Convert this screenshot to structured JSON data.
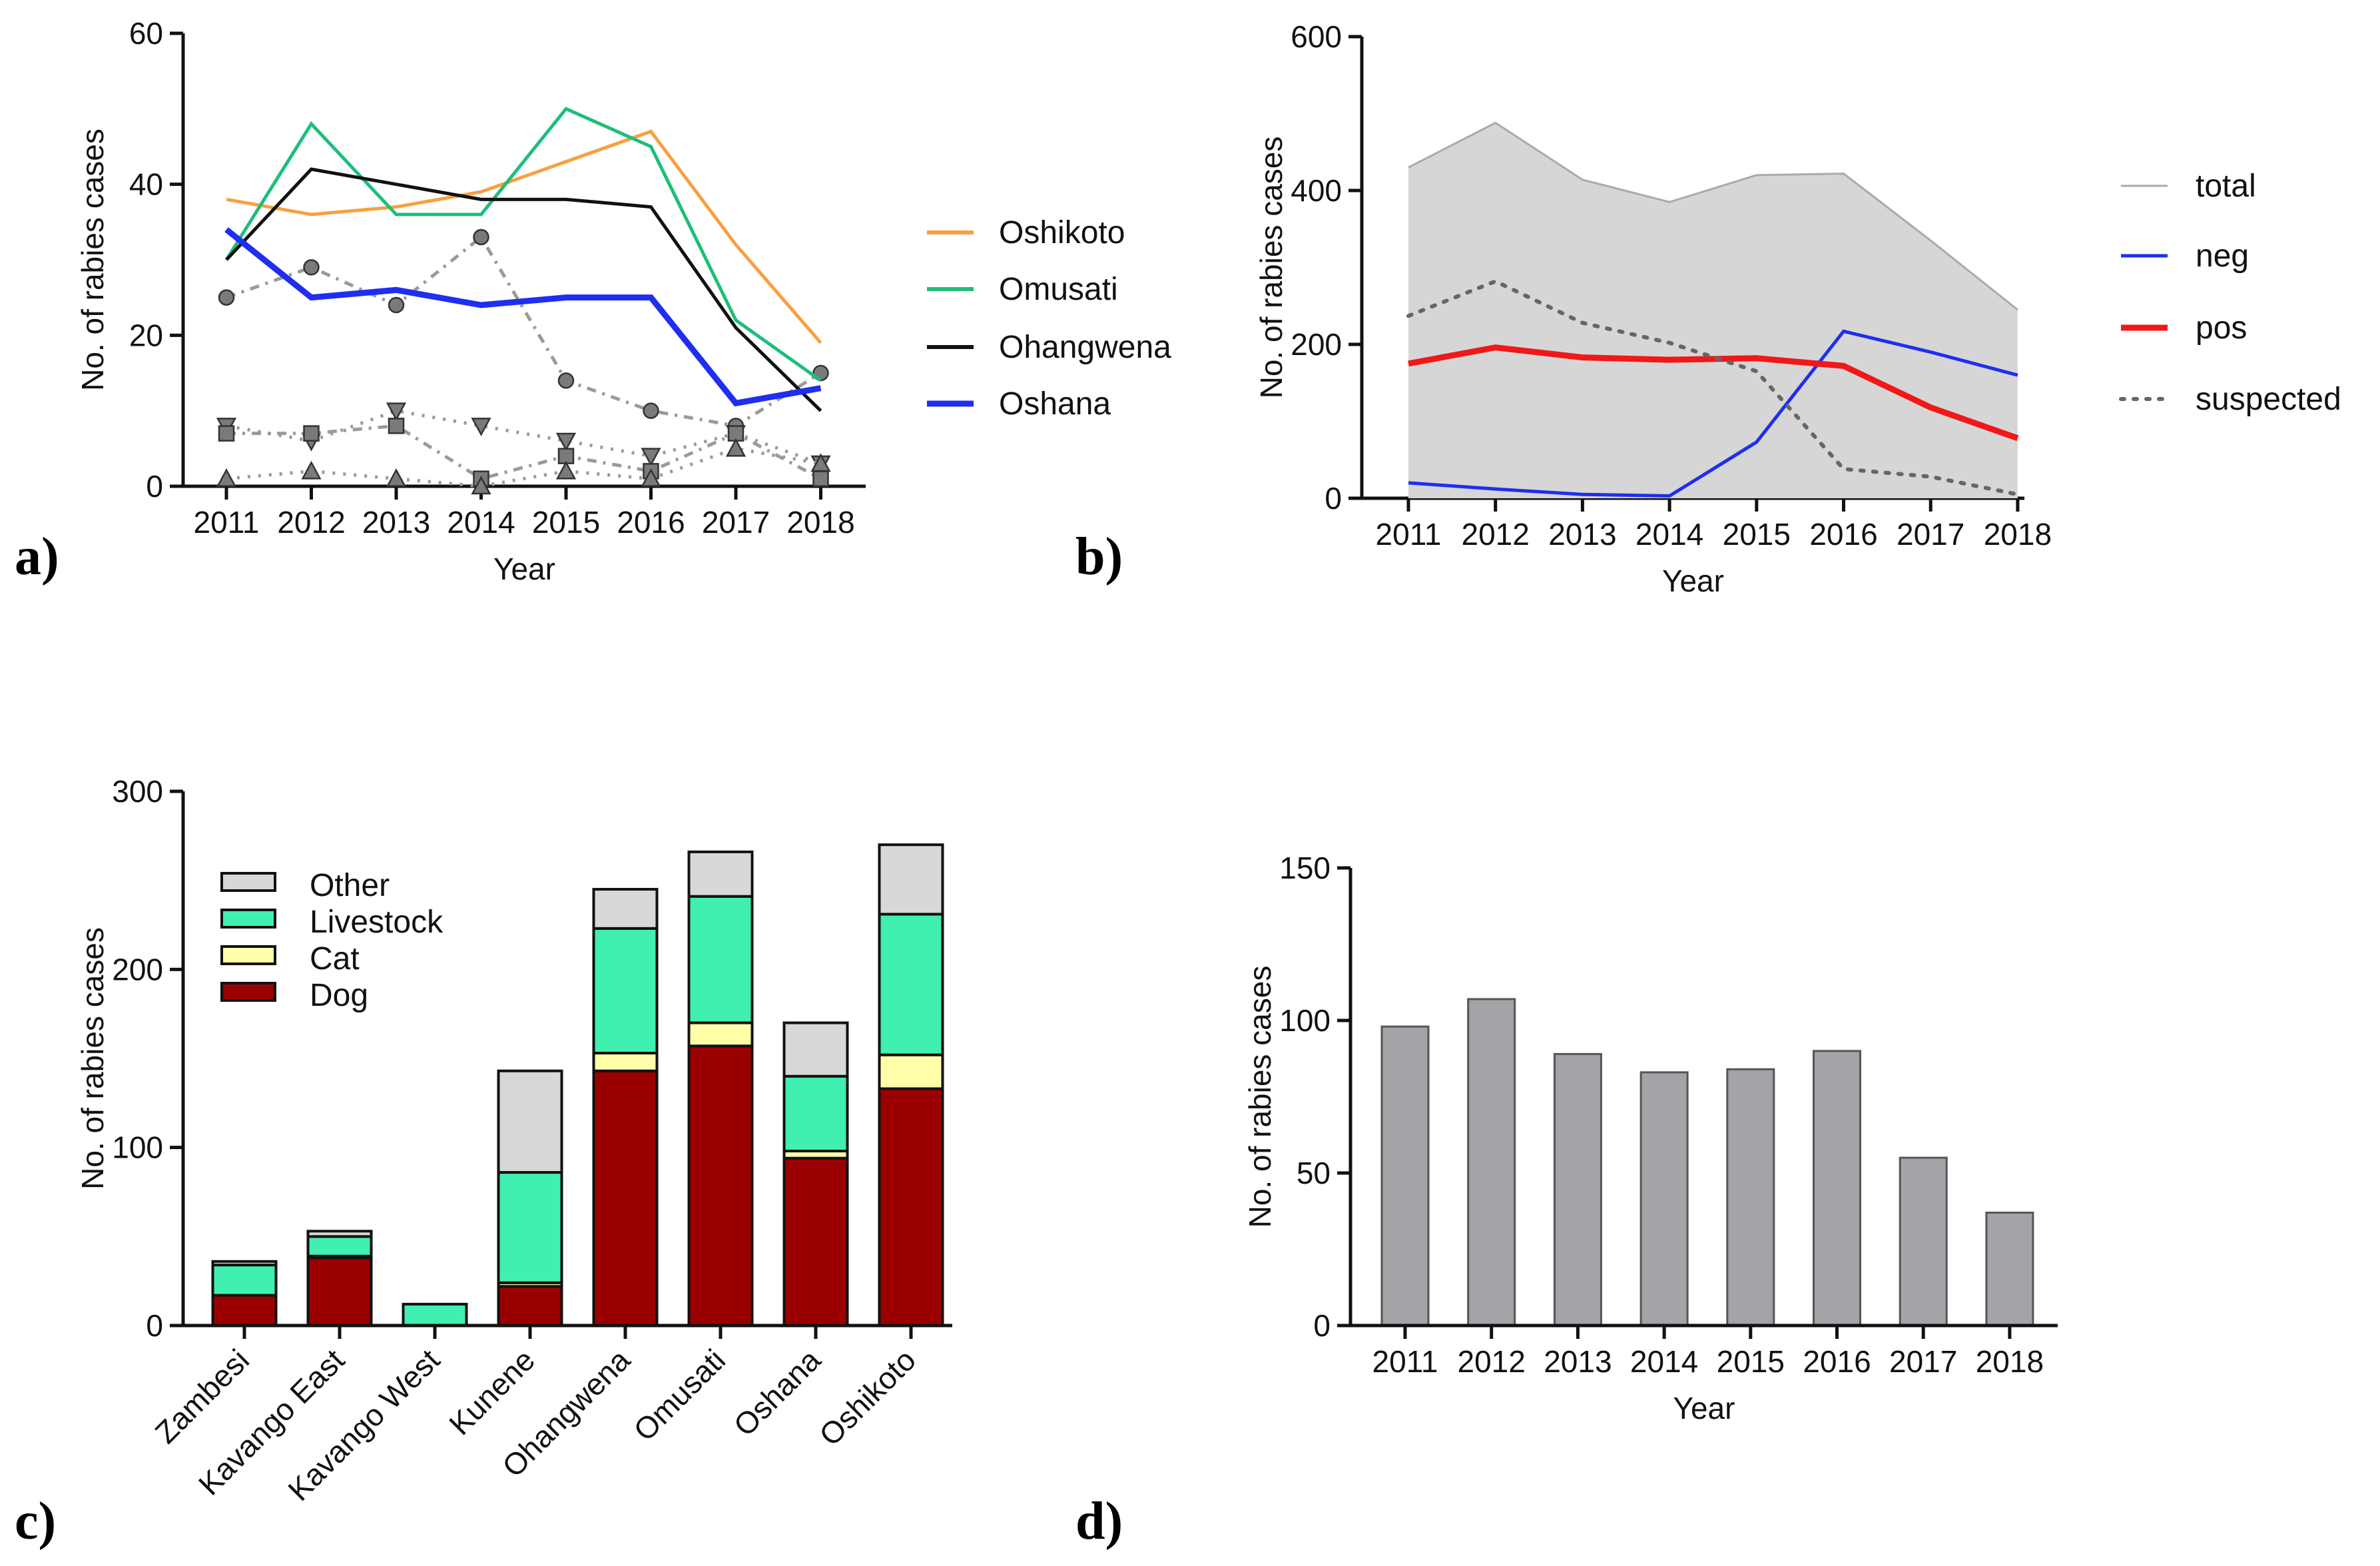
{
  "panel_labels": [
    "a)",
    "b)",
    "c)",
    "d)"
  ],
  "chart_data": [
    {
      "id": "a",
      "type": "line",
      "xlabel": "Year",
      "ylabel": "No. of rabies cases",
      "x": [
        "2011",
        "2012",
        "2013",
        "2014",
        "2015",
        "2016",
        "2017",
        "2018"
      ],
      "ylim": [
        0,
        60
      ],
      "yticks": [
        0,
        20,
        40,
        60
      ],
      "series": [
        {
          "name": "Oshikoto",
          "color": "#F7A040",
          "values": [
            38,
            36,
            37,
            39,
            43,
            47,
            32,
            19
          ]
        },
        {
          "name": "Omusati",
          "color": "#1DBE7A",
          "values": [
            30,
            48,
            36,
            36,
            50,
            45,
            22,
            14
          ]
        },
        {
          "name": "Ohangwena",
          "color": "#111111",
          "values": [
            30,
            42,
            40,
            38,
            38,
            37,
            21,
            10
          ]
        },
        {
          "name": "Oshana",
          "color": "#1F2EF0",
          "values": [
            34,
            25,
            26,
            24,
            25,
            25,
            11,
            13
          ]
        }
      ],
      "other_series": [
        {
          "marker": "circle",
          "values": [
            25,
            29,
            24,
            33,
            14,
            10,
            8,
            15
          ]
        },
        {
          "marker": "triangle-down",
          "values": [
            8,
            6,
            10,
            8,
            6,
            4,
            7,
            3
          ]
        },
        {
          "marker": "square",
          "values": [
            7,
            7,
            8,
            1,
            4,
            2,
            7,
            1
          ]
        },
        {
          "marker": "triangle-up",
          "values": [
            1,
            2,
            1,
            0,
            2,
            1,
            5,
            3
          ]
        }
      ]
    },
    {
      "id": "b",
      "type": "area",
      "xlabel": "Year",
      "ylabel": "No. of rabies cases",
      "x": [
        "2011",
        "2012",
        "2013",
        "2014",
        "2015",
        "2016",
        "2017",
        "2018"
      ],
      "ylim": [
        0,
        600
      ],
      "yticks": [
        0,
        200,
        400,
        600
      ],
      "series": [
        {
          "name": "total",
          "color": "#AAAAAA",
          "values": [
            430,
            488,
            414,
            385,
            420,
            422,
            335,
            245
          ]
        },
        {
          "name": "neg",
          "color": "#1F2EF0",
          "values": [
            20,
            12,
            5,
            3,
            73,
            217,
            190,
            160
          ]
        },
        {
          "name": "pos",
          "color": "#F01818",
          "values": [
            175,
            196,
            183,
            180,
            182,
            172,
            118,
            78
          ]
        },
        {
          "name": "suspected",
          "color": "#666666",
          "values": [
            237,
            282,
            228,
            202,
            165,
            38,
            28,
            5
          ]
        }
      ]
    },
    {
      "id": "c",
      "type": "bar",
      "stacked": true,
      "xlabel": "",
      "ylabel": "No. of rabies cases",
      "categories": [
        "Zambesi",
        "Kavango East",
        "Kavango West",
        "Kunene",
        "Ohangwena",
        "Omusati",
        "Oshana",
        "Oshikoto"
      ],
      "ylim": [
        0,
        300
      ],
      "yticks": [
        0,
        100,
        200,
        300
      ],
      "series": [
        {
          "name": "Dog",
          "color": "#9B0000",
          "values": [
            17,
            38,
            0,
            22,
            143,
            157,
            94,
            133
          ]
        },
        {
          "name": "Cat",
          "color": "#FFFFAA",
          "values": [
            0,
            1,
            0,
            2,
            10,
            13,
            4,
            19
          ]
        },
        {
          "name": "Livestock",
          "color": "#40F0B0",
          "values": [
            17,
            11,
            12,
            62,
            70,
            71,
            42,
            79
          ]
        },
        {
          "name": "Other",
          "color": "#D8D8D8",
          "values": [
            2,
            3,
            0,
            57,
            22,
            25,
            30,
            39
          ]
        }
      ],
      "legend_order": [
        "Other",
        "Livestock",
        "Cat",
        "Dog"
      ]
    },
    {
      "id": "d",
      "type": "bar",
      "xlabel": "Year",
      "ylabel": "No. of rabies cases",
      "categories": [
        "2011",
        "2012",
        "2013",
        "2014",
        "2015",
        "2016",
        "2017",
        "2018"
      ],
      "values": [
        98,
        107,
        89,
        83,
        84,
        90,
        55,
        37
      ],
      "color": "#A3A3A8",
      "ylim": [
        0,
        150
      ],
      "yticks": [
        0,
        50,
        100,
        150
      ]
    }
  ]
}
